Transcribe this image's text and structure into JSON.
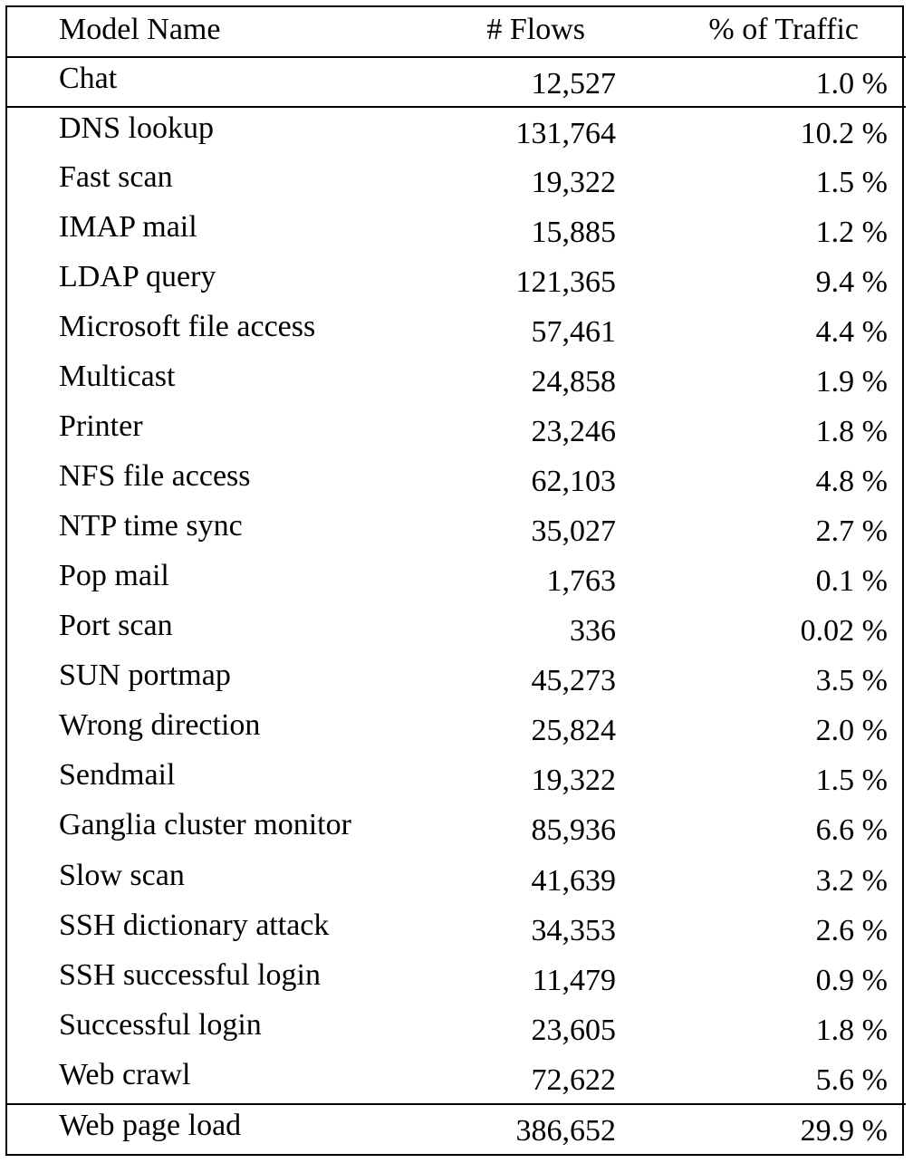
{
  "table": {
    "headers": {
      "model_name": "Model Name",
      "flows": "# Flows",
      "traffic": "% of Traffic"
    },
    "rows": [
      {
        "name": "Chat",
        "flows": "12,527",
        "traffic": "1.0 %"
      },
      {
        "name": "DNS lookup",
        "flows": "131,764",
        "traffic": "10.2 %"
      },
      {
        "name": "Fast scan",
        "flows": "19,322",
        "traffic": "1.5 %"
      },
      {
        "name": "IMAP mail",
        "flows": "15,885",
        "traffic": "1.2 %"
      },
      {
        "name": "LDAP query",
        "flows": "121,365",
        "traffic": "9.4 %"
      },
      {
        "name": "Microsoft file access",
        "flows": "57,461",
        "traffic": "4.4 %"
      },
      {
        "name": "Multicast",
        "flows": "24,858",
        "traffic": "1.9 %"
      },
      {
        "name": "Printer",
        "flows": "23,246",
        "traffic": "1.8 %"
      },
      {
        "name": "NFS file access",
        "flows": "62,103",
        "traffic": "4.8 %"
      },
      {
        "name": "NTP time sync",
        "flows": "35,027",
        "traffic": "2.7 %"
      },
      {
        "name": "Pop mail",
        "flows": "1,763",
        "traffic": "0.1 %"
      },
      {
        "name": "Port scan",
        "flows": "336",
        "traffic": "0.02 %"
      },
      {
        "name": "SUN portmap",
        "flows": "45,273",
        "traffic": "3.5 %"
      },
      {
        "name": "Wrong direction",
        "flows": "25,824",
        "traffic": "2.0 %"
      },
      {
        "name": "Sendmail",
        "flows": "19,322",
        "traffic": "1.5 %"
      },
      {
        "name": "Ganglia cluster monitor",
        "flows": "85,936",
        "traffic": "6.6 %"
      },
      {
        "name": "Slow scan",
        "flows": "41,639",
        "traffic": "3.2 %"
      },
      {
        "name": "SSH dictionary attack",
        "flows": "34,353",
        "traffic": "2.6 %"
      },
      {
        "name": "SSH successful login",
        "flows": "11,479",
        "traffic": "0.9 %"
      },
      {
        "name": "Successful login",
        "flows": "23,605",
        "traffic": "1.8 %"
      },
      {
        "name": "Web crawl",
        "flows": "72,622",
        "traffic": "5.6 %"
      },
      {
        "name": "Web page load",
        "flows": "386,652",
        "traffic": "29.9 %"
      }
    ]
  }
}
